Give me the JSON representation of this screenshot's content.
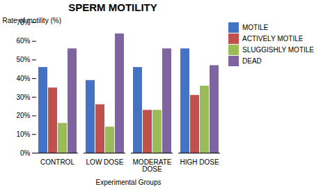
{
  "chart_data": {
    "type": "bar",
    "title": "SPERM MOTILITY",
    "xlabel": "Experimental Groups",
    "ylabel": "Rate of motility (%)",
    "categories": [
      "CONTROL",
      "LOW DOSE",
      "MODERATE\nDOSE",
      "HIGH DOSE"
    ],
    "series": [
      {
        "name": "MOTILE",
        "color": "#4472C4",
        "values": [
          46,
          39,
          46,
          56
        ]
      },
      {
        "name": "ACTIVELY MOTILE",
        "color": "#C0504D",
        "values": [
          35,
          26,
          23,
          31
        ]
      },
      {
        "name": "SLUGGISHLY MOTILE",
        "color": "#9BBB59",
        "values": [
          16,
          14,
          23,
          36
        ]
      },
      {
        "name": "DEAD",
        "color": "#8064A2",
        "values": [
          56,
          64,
          56,
          47
        ]
      }
    ],
    "ylim": [
      0,
      70
    ],
    "yticks": [
      {
        "value": 0,
        "label": "0%"
      },
      {
        "value": 10,
        "label": "10%"
      },
      {
        "value": 20,
        "label": "20%"
      },
      {
        "value": 30,
        "label": "30%"
      },
      {
        "value": 40,
        "label": "40%"
      },
      {
        "value": 50,
        "label": "50%"
      },
      {
        "value": 60,
        "label": "60%"
      },
      {
        "value": 70,
        "label": "70%"
      }
    ],
    "grid": false,
    "legend": "upper right"
  }
}
